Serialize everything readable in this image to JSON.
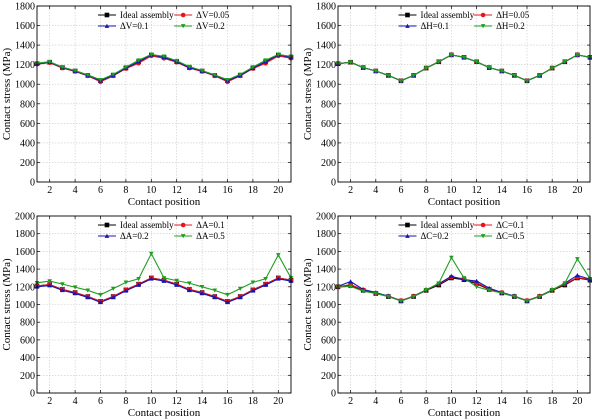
{
  "colors": {
    "ideal": "#000000",
    "red": "#e8141c",
    "blue": "#1616b4",
    "green": "#1e9e1e",
    "grid": "#c8c8c8"
  },
  "chart_data": [
    {
      "type": "line",
      "xlabel": "Contact position",
      "ylabel": "Contact stress (MPa)",
      "xlim": [
        1,
        21
      ],
      "ylim": [
        0,
        1800
      ],
      "x_ticks": [
        2,
        4,
        6,
        8,
        10,
        12,
        14,
        16,
        18,
        20
      ],
      "y_ticks": [
        0,
        200,
        400,
        600,
        800,
        1000,
        1200,
        1400,
        1600,
        1800
      ],
      "grid": true,
      "legend": "top-center",
      "x": [
        1,
        2,
        3,
        4,
        5,
        6,
        7,
        8,
        9,
        10,
        11,
        12,
        13,
        14,
        15,
        16,
        17,
        18,
        19,
        20,
        21
      ],
      "series": [
        {
          "name": "Ideal assembly",
          "color": "ideal",
          "marker": "square",
          "values": [
            1210,
            1225,
            1170,
            1135,
            1090,
            1035,
            1090,
            1165,
            1230,
            1300,
            1275,
            1230,
            1170,
            1135,
            1090,
            1035,
            1090,
            1165,
            1230,
            1300,
            1275
          ]
        },
        {
          "name": "ΔV=0.05",
          "color": "red",
          "marker": "circle",
          "values": [
            1205,
            1220,
            1165,
            1130,
            1085,
            1025,
            1085,
            1160,
            1215,
            1290,
            1265,
            1225,
            1165,
            1130,
            1085,
            1025,
            1085,
            1160,
            1215,
            1290,
            1265
          ]
        },
        {
          "name": "ΔV=0.1",
          "color": "blue",
          "marker": "triangle",
          "values": [
            1210,
            1225,
            1170,
            1135,
            1090,
            1035,
            1090,
            1165,
            1230,
            1300,
            1275,
            1230,
            1170,
            1135,
            1090,
            1035,
            1090,
            1165,
            1230,
            1300,
            1275
          ]
        },
        {
          "name": "ΔV=0.2",
          "color": "green",
          "marker": "triangle-down",
          "values": [
            1215,
            1230,
            1175,
            1140,
            1095,
            1045,
            1100,
            1175,
            1245,
            1305,
            1285,
            1240,
            1180,
            1140,
            1095,
            1045,
            1100,
            1175,
            1245,
            1305,
            1285
          ]
        }
      ]
    },
    {
      "type": "line",
      "xlabel": "Contact position",
      "ylabel": "Contact stress (MPa)",
      "xlim": [
        1,
        21
      ],
      "ylim": [
        0,
        1800
      ],
      "x_ticks": [
        2,
        4,
        6,
        8,
        10,
        12,
        14,
        16,
        18,
        20
      ],
      "y_ticks": [
        0,
        200,
        400,
        600,
        800,
        1000,
        1200,
        1400,
        1600,
        1800
      ],
      "grid": true,
      "legend": "top-center",
      "x": [
        1,
        2,
        3,
        4,
        5,
        6,
        7,
        8,
        9,
        10,
        11,
        12,
        13,
        14,
        15,
        16,
        17,
        18,
        19,
        20,
        21
      ],
      "series": [
        {
          "name": "Ideal assembly",
          "color": "ideal",
          "marker": "square",
          "values": [
            1210,
            1225,
            1170,
            1135,
            1090,
            1035,
            1090,
            1165,
            1230,
            1300,
            1275,
            1230,
            1170,
            1135,
            1090,
            1035,
            1090,
            1165,
            1230,
            1300,
            1275
          ]
        },
        {
          "name": "ΔH=0.05",
          "color": "red",
          "marker": "circle",
          "values": [
            1210,
            1225,
            1170,
            1135,
            1090,
            1035,
            1090,
            1165,
            1230,
            1300,
            1275,
            1230,
            1170,
            1135,
            1090,
            1035,
            1090,
            1165,
            1230,
            1300,
            1275
          ]
        },
        {
          "name": "ΔH=0.1",
          "color": "blue",
          "marker": "triangle",
          "values": [
            1210,
            1225,
            1170,
            1135,
            1090,
            1035,
            1090,
            1165,
            1230,
            1300,
            1275,
            1230,
            1170,
            1135,
            1090,
            1035,
            1090,
            1165,
            1230,
            1300,
            1275
          ]
        },
        {
          "name": "ΔH=0.2",
          "color": "green",
          "marker": "triangle-down",
          "values": [
            1210,
            1225,
            1170,
            1135,
            1090,
            1035,
            1090,
            1165,
            1230,
            1300,
            1275,
            1230,
            1170,
            1135,
            1090,
            1035,
            1090,
            1165,
            1230,
            1300,
            1275
          ]
        }
      ]
    },
    {
      "type": "line",
      "xlabel": "Contact position",
      "ylabel": "Contact stress (MPa)",
      "xlim": [
        1,
        21
      ],
      "ylim": [
        0,
        2000
      ],
      "x_ticks": [
        2,
        4,
        6,
        8,
        10,
        12,
        14,
        16,
        18,
        20
      ],
      "y_ticks": [
        0,
        200,
        400,
        600,
        800,
        1000,
        1200,
        1400,
        1600,
        1800,
        2000
      ],
      "grid": true,
      "legend": "top-center",
      "x": [
        1,
        2,
        3,
        4,
        5,
        6,
        7,
        8,
        9,
        10,
        11,
        12,
        13,
        14,
        15,
        16,
        17,
        18,
        19,
        20,
        21
      ],
      "series": [
        {
          "name": "Ideal assembly",
          "color": "ideal",
          "marker": "square",
          "values": [
            1210,
            1225,
            1170,
            1135,
            1090,
            1035,
            1090,
            1165,
            1230,
            1300,
            1275,
            1230,
            1170,
            1135,
            1090,
            1035,
            1090,
            1165,
            1230,
            1300,
            1275
          ]
        },
        {
          "name": "ΔA=0.1",
          "color": "red",
          "marker": "circle",
          "values": [
            1210,
            1225,
            1170,
            1135,
            1090,
            1035,
            1090,
            1165,
            1230,
            1300,
            1275,
            1230,
            1170,
            1135,
            1090,
            1035,
            1090,
            1165,
            1230,
            1300,
            1275
          ]
        },
        {
          "name": "ΔA=0.2",
          "color": "blue",
          "marker": "triangle",
          "values": [
            1200,
            1215,
            1160,
            1125,
            1080,
            1025,
            1080,
            1155,
            1220,
            1290,
            1265,
            1220,
            1160,
            1125,
            1080,
            1025,
            1080,
            1155,
            1220,
            1290,
            1265
          ]
        },
        {
          "name": "ΔA=0.5",
          "color": "green",
          "marker": "triangle-down",
          "values": [
            1245,
            1265,
            1230,
            1195,
            1160,
            1110,
            1180,
            1250,
            1290,
            1575,
            1300,
            1270,
            1240,
            1200,
            1160,
            1110,
            1180,
            1250,
            1290,
            1560,
            1300
          ]
        }
      ]
    },
    {
      "type": "line",
      "xlabel": "Contact position",
      "ylabel": "Contact stress (MPa)",
      "xlim": [
        1,
        21
      ],
      "ylim": [
        0,
        2000
      ],
      "x_ticks": [
        2,
        4,
        6,
        8,
        10,
        12,
        14,
        16,
        18,
        20
      ],
      "y_ticks": [
        0,
        200,
        400,
        600,
        800,
        1000,
        1200,
        1400,
        1600,
        1800,
        2000
      ],
      "grid": true,
      "legend": "top-center",
      "x": [
        1,
        2,
        3,
        4,
        5,
        6,
        7,
        8,
        9,
        10,
        11,
        12,
        13,
        14,
        15,
        16,
        17,
        18,
        19,
        20,
        21
      ],
      "series": [
        {
          "name": "Ideal assembly",
          "color": "ideal",
          "marker": "square",
          "values": [
            1200,
            1215,
            1160,
            1125,
            1090,
            1040,
            1090,
            1160,
            1220,
            1300,
            1280,
            1235,
            1170,
            1130,
            1090,
            1040,
            1090,
            1160,
            1220,
            1300,
            1275
          ]
        },
        {
          "name": "ΔC=0.1",
          "color": "red",
          "marker": "circle",
          "values": [
            1200,
            1225,
            1165,
            1130,
            1095,
            1045,
            1095,
            1165,
            1230,
            1310,
            1290,
            1245,
            1175,
            1135,
            1095,
            1045,
            1095,
            1165,
            1230,
            1305,
            1280
          ]
        },
        {
          "name": "ΔC=0.2",
          "color": "blue",
          "marker": "triangle",
          "values": [
            1205,
            1260,
            1170,
            1135,
            1095,
            1040,
            1095,
            1165,
            1235,
            1320,
            1280,
            1265,
            1185,
            1135,
            1095,
            1040,
            1095,
            1165,
            1240,
            1330,
            1285
          ]
        },
        {
          "name": "ΔC=0.5",
          "color": "green",
          "marker": "triangle-down",
          "values": [
            1195,
            1205,
            1150,
            1125,
            1090,
            1040,
            1090,
            1165,
            1240,
            1530,
            1300,
            1200,
            1160,
            1130,
            1090,
            1040,
            1090,
            1165,
            1240,
            1515,
            1290
          ]
        }
      ]
    }
  ]
}
